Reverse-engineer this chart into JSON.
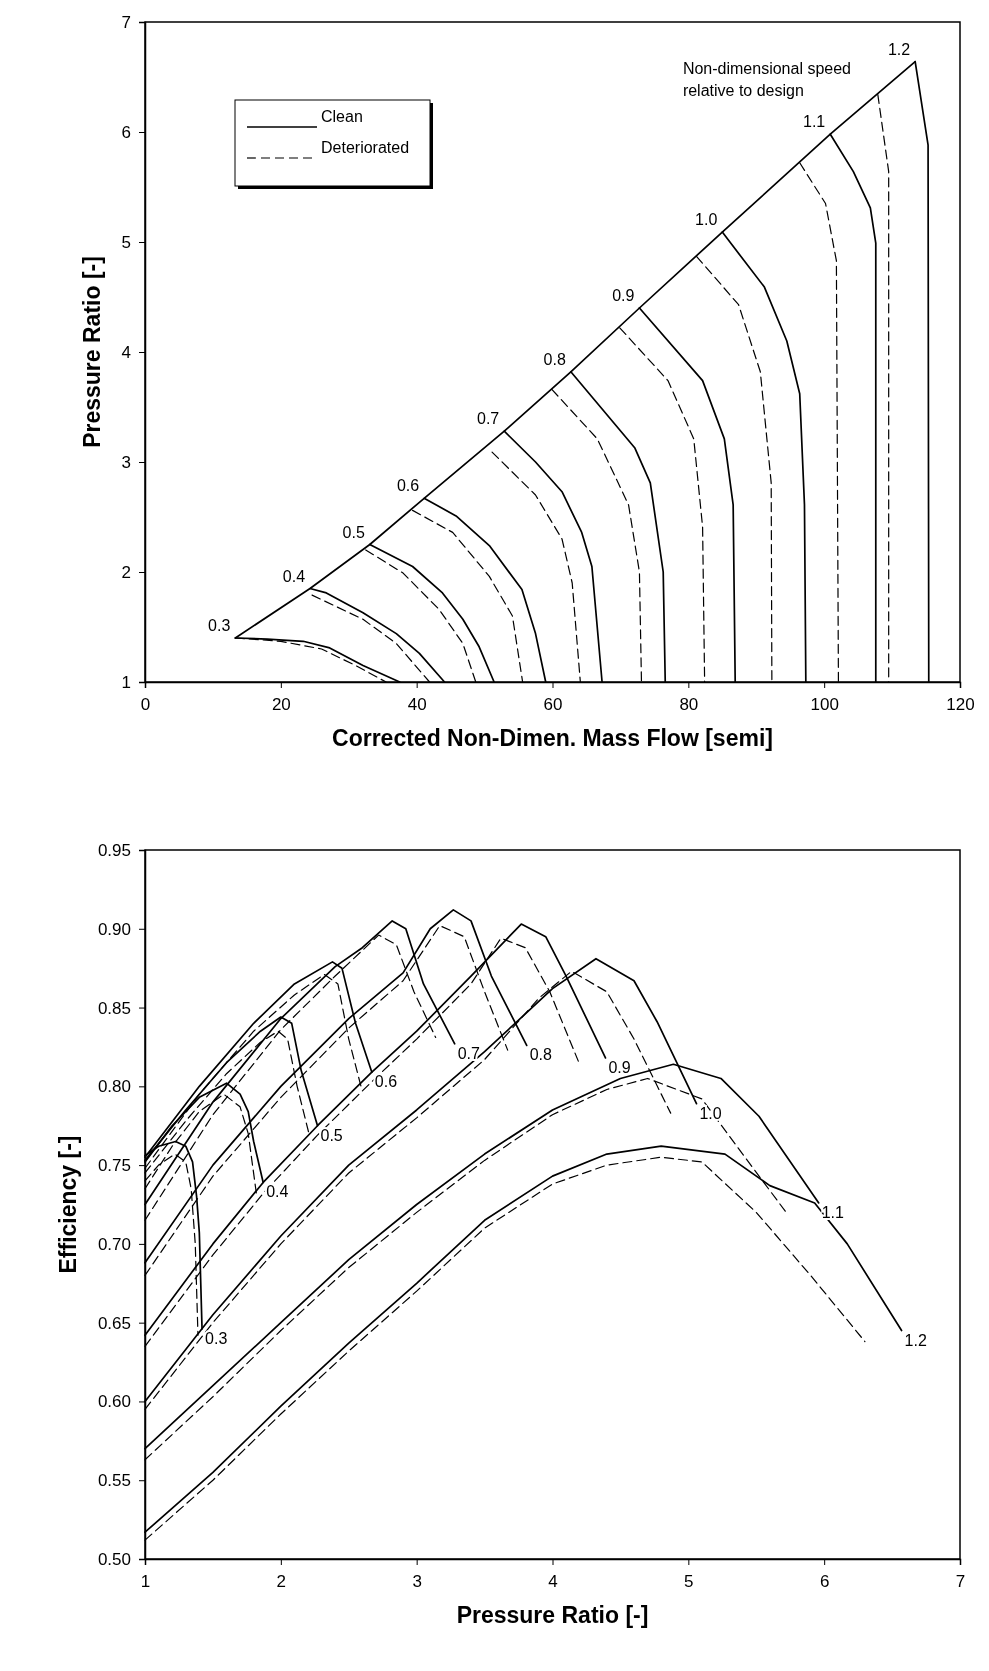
{
  "chart_data": [
    {
      "type": "line",
      "xlabel": "Corrected Non-Dimen. Mass Flow [semi]",
      "ylabel": "Pressure Ratio [-]",
      "xlim": [
        0,
        120
      ],
      "ylim": [
        1,
        7
      ],
      "xticks": [
        0,
        20,
        40,
        60,
        80,
        100,
        120
      ],
      "yticks": [
        1,
        2,
        3,
        4,
        5,
        6,
        7
      ],
      "grid": false,
      "legend": "top left",
      "series": [
        {
          "color": "#000000",
          "line_style": "solid",
          "x": [
            13.3,
            24.3,
            33.1,
            41.1,
            52.9,
            62.7,
            72.8,
            85.0,
            100.9,
            113.4
          ],
          "values": [
            1.4,
            1.85,
            2.25,
            2.67,
            3.28,
            3.82,
            4.4,
            5.09,
            5.98,
            6.64
          ]
        },
        {
          "name": "Clean",
          "color": "#000000",
          "line_style": "solid",
          "x": [
            13.3,
            18,
            23.3,
            27.2,
            32.1,
            37.5
          ],
          "values": [
            1.4,
            1.39,
            1.37,
            1.31,
            1.15,
            1.0
          ]
        },
        {
          "name": "Deteriorated",
          "color": "#000000",
          "line_style": "dashed",
          "x": [
            13.3,
            20,
            26,
            31,
            35.5
          ],
          "values": [
            1.4,
            1.37,
            1.3,
            1.15,
            1.0
          ]
        },
        {
          "color": "#000000",
          "line_style": "solid",
          "x": [
            24.3,
            26.7,
            32.1,
            37.0,
            40.4,
            44.1
          ],
          "values": [
            1.85,
            1.81,
            1.63,
            1.44,
            1.26,
            1.0
          ]
        },
        {
          "color": "#000000",
          "line_style": "dashed",
          "x": [
            24.6,
            32.1,
            37.0,
            41.9
          ],
          "values": [
            1.79,
            1.57,
            1.35,
            1.0
          ]
        },
        {
          "color": "#000000",
          "line_style": "solid",
          "x": [
            33.1,
            39.4,
            43.8,
            46.8,
            49.2,
            51.4
          ],
          "values": [
            2.25,
            2.05,
            1.81,
            1.57,
            1.32,
            1.0
          ]
        },
        {
          "color": "#000000",
          "line_style": "dashed",
          "x": [
            32.5,
            38.0,
            43.3,
            46.8,
            48.7
          ],
          "values": [
            2.2,
            1.99,
            1.66,
            1.35,
            1.0
          ]
        },
        {
          "color": "#000000",
          "line_style": "solid",
          "x": [
            41.1,
            45.8,
            50.7,
            55.5,
            57.5,
            59.0
          ],
          "values": [
            2.67,
            2.51,
            2.24,
            1.84,
            1.44,
            1.0
          ]
        },
        {
          "color": "#000000",
          "line_style": "dashed",
          "x": [
            39.4,
            45.3,
            50.7,
            54.1,
            55.6
          ],
          "values": [
            2.56,
            2.36,
            1.96,
            1.6,
            1.0
          ]
        },
        {
          "color": "#000000",
          "line_style": "solid",
          "x": [
            52.9,
            57.5,
            61.4,
            64.3,
            65.8,
            67.3
          ],
          "values": [
            3.28,
            3.0,
            2.73,
            2.36,
            2.05,
            1.0
          ]
        },
        {
          "color": "#000000",
          "line_style": "dashed",
          "x": [
            51.1,
            57.5,
            61.4,
            62.9,
            64.1
          ],
          "values": [
            3.09,
            2.7,
            2.3,
            1.9,
            1.0
          ]
        },
        {
          "color": "#000000",
          "line_style": "solid",
          "x": [
            62.7,
            72.1,
            74.4,
            76.3,
            76.6
          ],
          "values": [
            3.82,
            3.13,
            2.81,
            2.0,
            1.0
          ]
        },
        {
          "color": "#000000",
          "line_style": "dashed",
          "x": [
            59.9,
            66.6,
            71.2,
            72.8,
            73.1
          ],
          "values": [
            3.66,
            3.21,
            2.61,
            2.0,
            1.0
          ]
        },
        {
          "color": "#000000",
          "line_style": "solid",
          "x": [
            72.8,
            82.1,
            85.3,
            86.6,
            86.9
          ],
          "values": [
            4.4,
            3.74,
            3.21,
            2.61,
            1.0
          ]
        },
        {
          "color": "#000000",
          "line_style": "dashed",
          "x": [
            69.9,
            77.0,
            80.8,
            82.1,
            82.4
          ],
          "values": [
            4.22,
            3.74,
            3.21,
            2.41,
            1.0
          ]
        },
        {
          "color": "#000000",
          "line_style": "solid",
          "x": [
            85.0,
            91.2,
            94.5,
            96.4,
            97.1,
            97.3
          ],
          "values": [
            5.09,
            4.59,
            4.1,
            3.62,
            2.61,
            1.0
          ]
        },
        {
          "color": "#000000",
          "line_style": "dashed",
          "x": [
            81.2,
            87.4,
            90.6,
            92.2,
            92.3
          ],
          "values": [
            4.87,
            4.43,
            3.82,
            2.81,
            1.0
          ]
        },
        {
          "color": "#000000",
          "line_style": "solid",
          "x": [
            100.9,
            104.3,
            106.8,
            107.6,
            107.6
          ],
          "values": [
            5.98,
            5.64,
            5.31,
            4.99,
            1.0
          ]
        },
        {
          "color": "#000000",
          "line_style": "dashed",
          "x": [
            96.4,
            100.2,
            101.8,
            102.1
          ],
          "values": [
            5.72,
            5.35,
            4.83,
            1.0
          ]
        },
        {
          "color": "#000000",
          "line_style": "solid",
          "x": [
            113.4,
            115.3,
            115.4
          ],
          "values": [
            6.64,
            5.88,
            1.0
          ]
        },
        {
          "color": "#000000",
          "line_style": "dashed",
          "x": [
            107.9,
            109.5,
            109.5
          ],
          "values": [
            6.34,
            5.64,
            1.0
          ]
        }
      ],
      "annotations": [
        "Non-dimensional speed relative to design",
        {
          "text": "0.3",
          "x": 13.3,
          "y": 1.4
        },
        {
          "text": "0.4",
          "x": 24.3,
          "y": 1.85
        },
        {
          "text": "0.5",
          "x": 33.1,
          "y": 2.25
        },
        {
          "text": "0.6",
          "x": 41.1,
          "y": 2.67
        },
        {
          "text": "0.7",
          "x": 52.9,
          "y": 3.28
        },
        {
          "text": "0.8",
          "x": 62.7,
          "y": 3.82
        },
        {
          "text": "0.9",
          "x": 72.8,
          "y": 4.4
        },
        {
          "text": "1.0",
          "x": 85.0,
          "y": 5.09
        },
        {
          "text": "1.1",
          "x": 100.9,
          "y": 5.98
        },
        {
          "text": "1.2",
          "x": 113.4,
          "y": 6.64
        }
      ]
    },
    {
      "type": "line",
      "xlabel": "Pressure Ratio [-]",
      "ylabel": "Efficiency [-]",
      "xlim": [
        1,
        7
      ],
      "ylim": [
        0.5,
        0.95
      ],
      "xticks": [
        1,
        2,
        3,
        4,
        5,
        6,
        7
      ],
      "yticks": [
        {
          "value": 0.5,
          "label": "0.50"
        },
        {
          "value": 0.55,
          "label": "0.55"
        },
        {
          "value": 0.6,
          "label": "0.60"
        },
        {
          "value": 0.65,
          "label": "0.65"
        },
        {
          "value": 0.7,
          "label": "0.70"
        },
        {
          "value": 0.75,
          "label": "0.75"
        },
        {
          "value": 0.8,
          "label": "0.80"
        },
        {
          "value": 0.85,
          "label": "0.85"
        },
        {
          "value": 0.9,
          "label": "0.90"
        },
        {
          "value": 0.95,
          "label": "0.95"
        }
      ],
      "grid": false,
      "series": [
        {
          "color": "#000000",
          "line_style": "solid",
          "x": [
            1,
            1.1,
            1.225,
            1.3,
            1.35,
            1.38,
            1.4,
            1.42
          ],
          "values": [
            0.756,
            0.762,
            0.765,
            0.762,
            0.752,
            0.73,
            0.707,
            0.646
          ]
        },
        {
          "color": "#000000",
          "line_style": "dashed",
          "x": [
            1,
            1.1,
            1.22,
            1.3,
            1.34,
            1.37,
            1.39
          ],
          "values": [
            0.74,
            0.75,
            0.757,
            0.752,
            0.735,
            0.7,
            0.642
          ]
        },
        {
          "color": "#000000",
          "line_style": "solid",
          "x": [
            1,
            1.2,
            1.4,
            1.6,
            1.7,
            1.76,
            1.8,
            1.87
          ],
          "values": [
            0.752,
            0.775,
            0.793,
            0.802,
            0.795,
            0.784,
            0.765,
            0.739
          ]
        },
        {
          "color": "#000000",
          "line_style": "dashed",
          "x": [
            1,
            1.2,
            1.4,
            1.58,
            1.7,
            1.76,
            1.82
          ],
          "values": [
            0.735,
            0.762,
            0.784,
            0.795,
            0.787,
            0.77,
            0.732
          ]
        },
        {
          "color": "#000000",
          "line_style": "solid",
          "x": [
            1,
            1.3,
            1.6,
            1.85,
            2.0,
            2.08,
            2.15,
            2.27
          ],
          "values": [
            0.753,
            0.785,
            0.815,
            0.835,
            0.844,
            0.84,
            0.81,
            0.775
          ]
        },
        {
          "color": "#000000",
          "line_style": "dashed",
          "x": [
            1,
            1.3,
            1.6,
            1.85,
            1.98,
            2.05,
            2.12,
            2.21
          ],
          "values": [
            0.745,
            0.778,
            0.808,
            0.828,
            0.835,
            0.83,
            0.8,
            0.769
          ]
        },
        {
          "color": "#000000",
          "line_style": "solid",
          "x": [
            1,
            1.4,
            1.8,
            2.1,
            2.38,
            2.45,
            2.55,
            2.67
          ],
          "values": [
            0.755,
            0.8,
            0.84,
            0.865,
            0.879,
            0.875,
            0.84,
            0.809
          ]
        },
        {
          "color": "#000000",
          "line_style": "dashed",
          "x": [
            1,
            1.4,
            1.8,
            2.1,
            2.32,
            2.42,
            2.5,
            2.59
          ],
          "values": [
            0.748,
            0.795,
            0.835,
            0.858,
            0.871,
            0.865,
            0.83,
            0.8
          ]
        },
        {
          "color": "#000000",
          "line_style": "solid",
          "x": [
            1,
            1.5,
            2.0,
            2.4,
            2.6,
            2.82,
            2.92,
            3.05,
            3.28
          ],
          "values": [
            0.725,
            0.79,
            0.843,
            0.876,
            0.888,
            0.905,
            0.9,
            0.865,
            0.827
          ]
        },
        {
          "color": "#000000",
          "line_style": "dashed",
          "x": [
            1,
            1.5,
            2.0,
            2.4,
            2.72,
            2.85,
            2.98,
            3.14
          ],
          "values": [
            0.715,
            0.782,
            0.836,
            0.87,
            0.896,
            0.89,
            0.86,
            0.831
          ]
        },
        {
          "color": "#000000",
          "line_style": "solid",
          "x": [
            1,
            1.5,
            2.0,
            2.5,
            2.9,
            3.1,
            3.27,
            3.4,
            3.55,
            3.81
          ],
          "values": [
            0.688,
            0.75,
            0.8,
            0.843,
            0.872,
            0.9,
            0.912,
            0.905,
            0.87,
            0.826
          ]
        },
        {
          "color": "#000000",
          "line_style": "dashed",
          "x": [
            1,
            1.5,
            2.0,
            2.5,
            2.9,
            3.17,
            3.35,
            3.5,
            3.67
          ],
          "values": [
            0.68,
            0.743,
            0.793,
            0.837,
            0.867,
            0.902,
            0.895,
            0.86,
            0.823
          ]
        },
        {
          "color": "#000000",
          "line_style": "solid",
          "x": [
            1,
            1.5,
            1.87,
            2.27,
            2.67,
            3.0,
            3.4,
            3.77,
            3.95,
            4.1,
            4.39
          ],
          "values": [
            0.642,
            0.7,
            0.739,
            0.775,
            0.809,
            0.835,
            0.87,
            0.903,
            0.895,
            0.87,
            0.818
          ]
        },
        {
          "color": "#000000",
          "line_style": "dashed",
          "x": [
            1,
            1.5,
            1.87,
            2.27,
            2.67,
            3.0,
            3.4,
            3.62,
            3.8,
            3.98,
            4.19
          ],
          "values": [
            0.635,
            0.693,
            0.732,
            0.769,
            0.803,
            0.83,
            0.865,
            0.894,
            0.888,
            0.86,
            0.816
          ]
        },
        {
          "color": "#000000",
          "line_style": "solid",
          "x": [
            1,
            1.5,
            2.0,
            2.5,
            3.0,
            3.5,
            4.0,
            4.32,
            4.6,
            4.77,
            5.06
          ],
          "values": [
            0.6,
            0.655,
            0.705,
            0.75,
            0.785,
            0.822,
            0.862,
            0.881,
            0.867,
            0.841,
            0.789
          ]
        },
        {
          "color": "#000000",
          "line_style": "dashed",
          "x": [
            1,
            1.5,
            2.0,
            2.5,
            3.0,
            3.5,
            3.9,
            4.14,
            4.4,
            4.6,
            4.87
          ],
          "values": [
            0.595,
            0.65,
            0.7,
            0.745,
            0.78,
            0.817,
            0.856,
            0.873,
            0.86,
            0.83,
            0.783
          ]
        },
        {
          "color": "#000000",
          "line_style": "solid",
          "x": [
            1,
            1.5,
            2.0,
            2.5,
            3.0,
            3.5,
            4.0,
            4.5,
            4.89,
            5.24,
            5.52,
            5.96
          ],
          "values": [
            0.57,
            0.61,
            0.65,
            0.69,
            0.725,
            0.757,
            0.785,
            0.805,
            0.814,
            0.805,
            0.781,
            0.726
          ]
        },
        {
          "color": "#000000",
          "line_style": "dashed",
          "x": [
            1,
            1.5,
            2.0,
            2.5,
            3.0,
            3.5,
            4.0,
            4.4,
            4.7,
            5.1,
            5.4,
            5.72
          ],
          "values": [
            0.563,
            0.603,
            0.645,
            0.685,
            0.72,
            0.753,
            0.782,
            0.798,
            0.805,
            0.792,
            0.757,
            0.72
          ]
        },
        {
          "color": "#000000",
          "line_style": "solid",
          "x": [
            1,
            1.5,
            2.0,
            2.5,
            3.0,
            3.5,
            4.0,
            4.4,
            4.8,
            5.27,
            5.6,
            5.93,
            6.17,
            6.57
          ],
          "values": [
            0.517,
            0.555,
            0.597,
            0.637,
            0.675,
            0.715,
            0.743,
            0.757,
            0.762,
            0.757,
            0.737,
            0.726,
            0.7,
            0.645
          ]
        },
        {
          "color": "#000000",
          "line_style": "dashed",
          "x": [
            1,
            1.5,
            2.0,
            2.5,
            3.0,
            3.5,
            4.0,
            4.4,
            4.8,
            5.1,
            5.5,
            5.9,
            6.3
          ],
          "values": [
            0.512,
            0.55,
            0.592,
            0.632,
            0.67,
            0.71,
            0.738,
            0.75,
            0.755,
            0.752,
            0.72,
            0.68,
            0.638
          ]
        }
      ],
      "annotations": [
        {
          "text": "0.3",
          "x": 1.42,
          "y": 0.646
        },
        {
          "text": "0.4",
          "x": 1.87,
          "y": 0.739
        },
        {
          "text": "0.5",
          "x": 2.27,
          "y": 0.775
        },
        {
          "text": "0.6",
          "x": 2.67,
          "y": 0.809
        },
        {
          "text": "0.7",
          "x": 3.28,
          "y": 0.827
        },
        {
          "text": "0.8",
          "x": 3.81,
          "y": 0.826
        },
        {
          "text": "0.9",
          "x": 4.39,
          "y": 0.818
        },
        {
          "text": "1.0",
          "x": 5.06,
          "y": 0.789
        },
        {
          "text": "1.1",
          "x": 5.96,
          "y": 0.726
        },
        {
          "text": "1.2",
          "x": 6.57,
          "y": 0.645
        }
      ]
    }
  ]
}
